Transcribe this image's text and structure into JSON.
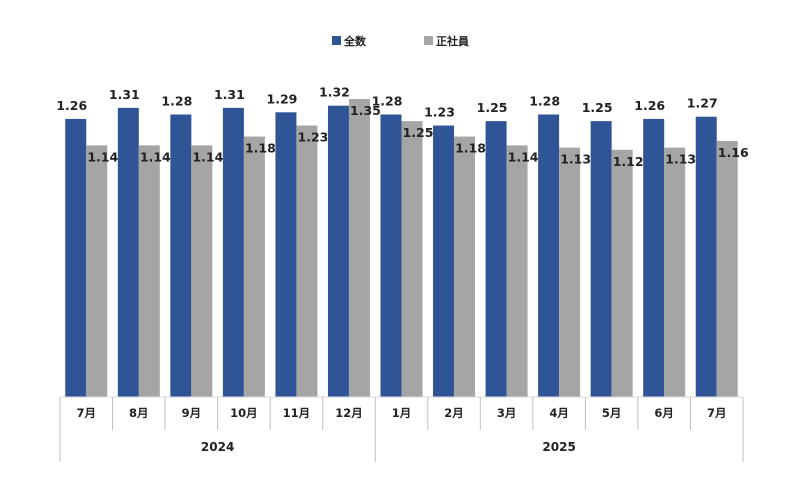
{
  "chart_data": {
    "type": "bar",
    "title": "",
    "xlabel": "",
    "ylabel": "",
    "ylim": [
      0,
      1.35
    ],
    "grid": false,
    "legend_position": "top-center",
    "categories": [
      "7月",
      "8月",
      "9月",
      "10月",
      "11月",
      "12月",
      "1月",
      "2月",
      "3月",
      "4月",
      "5月",
      "6月",
      "7月"
    ],
    "groups": [
      {
        "label": "2024",
        "count": 6
      },
      {
        "label": "2025",
        "count": 7
      }
    ],
    "series": [
      {
        "name": "全数",
        "color": "#2F5597",
        "values": [
          1.26,
          1.31,
          1.28,
          1.31,
          1.29,
          1.32,
          1.28,
          1.23,
          1.25,
          1.28,
          1.25,
          1.26,
          1.27
        ]
      },
      {
        "name": "正社員",
        "color": "#A5A5A5",
        "values": [
          1.14,
          1.14,
          1.14,
          1.18,
          1.23,
          1.35,
          1.25,
          1.18,
          1.14,
          1.13,
          1.12,
          1.13,
          1.16
        ]
      }
    ]
  }
}
